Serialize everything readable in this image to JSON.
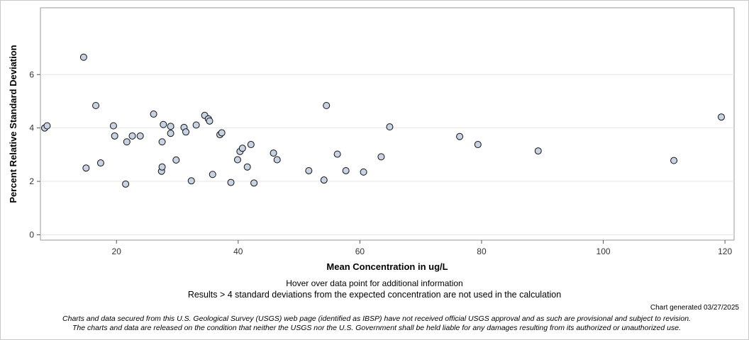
{
  "chart_data": {
    "type": "scatter",
    "title": "",
    "xlabel": "Mean Concentration in ug/L",
    "ylabel": "Percent Relative Standard Deviation",
    "xlim": [
      7.5,
      121.5
    ],
    "ylim": [
      -0.2,
      8.5
    ],
    "xticks": [
      20,
      40,
      60,
      80,
      100,
      120
    ],
    "yticks": [
      0,
      2,
      4,
      6
    ],
    "xtick_labels": [
      "20",
      "40",
      "60",
      "80",
      "100",
      "120"
    ],
    "ytick_labels": [
      "0",
      "2",
      "4",
      "6"
    ],
    "grid": true,
    "marker_color": "#c7d3e2",
    "marker_edge": "#111111",
    "points": [
      {
        "x": 8.2,
        "y": 4.0
      },
      {
        "x": 8.6,
        "y": 4.08
      },
      {
        "x": 14.6,
        "y": 6.65
      },
      {
        "x": 15.0,
        "y": 2.5
      },
      {
        "x": 16.6,
        "y": 4.84
      },
      {
        "x": 17.4,
        "y": 2.69
      },
      {
        "x": 19.5,
        "y": 4.08
      },
      {
        "x": 19.7,
        "y": 3.7
      },
      {
        "x": 21.5,
        "y": 1.9
      },
      {
        "x": 21.7,
        "y": 3.48
      },
      {
        "x": 22.6,
        "y": 3.7
      },
      {
        "x": 23.9,
        "y": 3.7
      },
      {
        "x": 26.1,
        "y": 4.52
      },
      {
        "x": 27.4,
        "y": 2.38
      },
      {
        "x": 27.5,
        "y": 2.54
      },
      {
        "x": 27.5,
        "y": 3.48
      },
      {
        "x": 27.7,
        "y": 4.13
      },
      {
        "x": 28.9,
        "y": 4.06
      },
      {
        "x": 28.9,
        "y": 3.8
      },
      {
        "x": 29.8,
        "y": 2.8
      },
      {
        "x": 31.1,
        "y": 4.02
      },
      {
        "x": 31.4,
        "y": 3.85
      },
      {
        "x": 32.3,
        "y": 2.02
      },
      {
        "x": 33.1,
        "y": 4.11
      },
      {
        "x": 34.5,
        "y": 4.47
      },
      {
        "x": 35.1,
        "y": 4.34
      },
      {
        "x": 35.3,
        "y": 4.26
      },
      {
        "x": 35.8,
        "y": 2.26
      },
      {
        "x": 37.0,
        "y": 3.75
      },
      {
        "x": 37.3,
        "y": 3.82
      },
      {
        "x": 38.8,
        "y": 1.96
      },
      {
        "x": 39.9,
        "y": 2.81
      },
      {
        "x": 40.3,
        "y": 3.12
      },
      {
        "x": 40.7,
        "y": 3.24
      },
      {
        "x": 41.5,
        "y": 2.54
      },
      {
        "x": 42.1,
        "y": 3.38
      },
      {
        "x": 42.6,
        "y": 1.94
      },
      {
        "x": 45.8,
        "y": 3.06
      },
      {
        "x": 46.4,
        "y": 2.81
      },
      {
        "x": 51.6,
        "y": 2.4
      },
      {
        "x": 54.1,
        "y": 2.05
      },
      {
        "x": 54.5,
        "y": 4.84
      },
      {
        "x": 56.3,
        "y": 3.02
      },
      {
        "x": 57.7,
        "y": 2.4
      },
      {
        "x": 60.6,
        "y": 2.35
      },
      {
        "x": 63.5,
        "y": 2.92
      },
      {
        "x": 64.9,
        "y": 4.04
      },
      {
        "x": 76.4,
        "y": 3.68
      },
      {
        "x": 79.4,
        "y": 3.38
      },
      {
        "x": 89.3,
        "y": 3.14
      },
      {
        "x": 111.6,
        "y": 2.78
      },
      {
        "x": 119.4,
        "y": 4.41
      }
    ]
  },
  "notes": {
    "hover": "Hover over data point for additional information",
    "results": "Results > 4 standard deviations from the expected concentration are not used in the calculation",
    "generated": "Chart generated 03/27/2025",
    "disclaimer_1": "Charts and data secured from this U.S. Geological Survey (USGS) web page (identified as IBSP) have not received official USGS approval and as such are provisional and subject to revision.",
    "disclaimer_2": "The charts and data are released on the condition that neither the USGS nor the U.S. Government shall be held liable for any damages resulting from its authorized or unauthorized use."
  }
}
